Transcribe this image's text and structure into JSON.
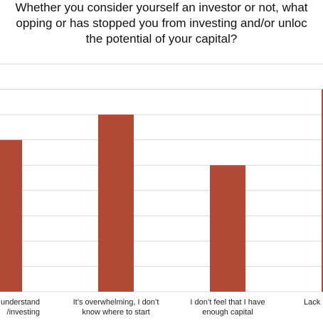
{
  "chart_data": {
    "type": "bar",
    "title_lines": [
      "Whether you consider yourself an investor or not, what",
      "opping or has stopped you from investing and/or unloc",
      "the potential of your capital?"
    ],
    "categories": [
      [
        "understand",
        "/investing"
      ],
      [
        "It’s overwhelming, I don’t",
        "know where to start"
      ],
      [
        "I don’t feel that I have",
        "enough capital"
      ],
      [
        "Lack"
      ]
    ],
    "values": [
      6,
      7,
      5,
      8
    ],
    "ylim": [
      0,
      9
    ],
    "grid": true,
    "bar_color": "#b04a37",
    "grid_color": "#d9d9d9"
  }
}
